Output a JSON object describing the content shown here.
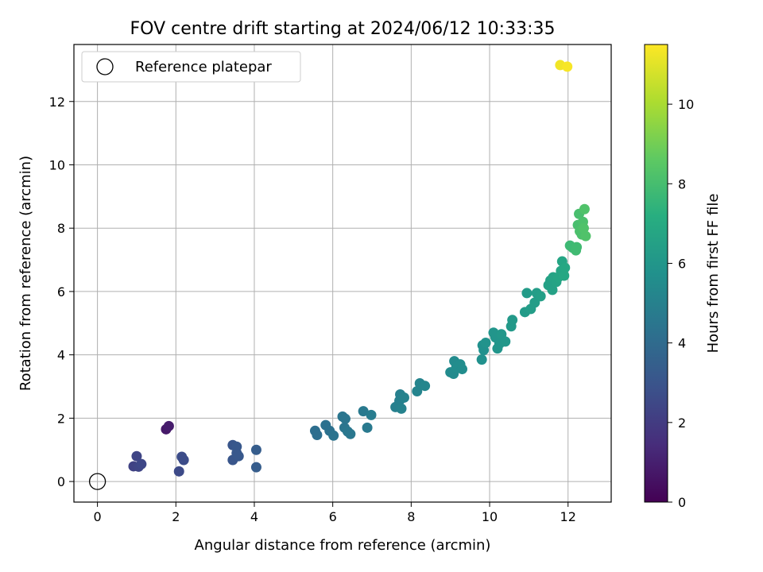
{
  "chart_data": {
    "type": "scatter",
    "title": "FOV centre drift starting at 2024/06/12 10:33:35",
    "xlabel": "Angular distance from reference (arcmin)",
    "ylabel": "Rotation from reference (arcmin)",
    "xlim": [
      -0.6,
      13.1
    ],
    "ylim": [
      -0.65,
      13.8
    ],
    "xticks": [
      0,
      2,
      4,
      6,
      8,
      10,
      12
    ],
    "yticks": [
      0,
      2,
      4,
      6,
      8,
      10,
      12
    ],
    "grid": true,
    "legend": {
      "placement": "top-left",
      "entries": [
        "Reference platepar"
      ]
    },
    "colorbar": {
      "label": "Hours from first FF file",
      "range": [
        0,
        11.5
      ],
      "ticks": [
        0,
        2,
        4,
        6,
        8,
        10
      ],
      "colormap": "viridis"
    },
    "reference_point": {
      "x": 0,
      "y": 0
    },
    "points": [
      {
        "x": 1.75,
        "y": 1.65,
        "h": 0.8
      },
      {
        "x": 1.82,
        "y": 1.75,
        "h": 0.9
      },
      {
        "x": 0.92,
        "y": 0.48,
        "h": 2.3
      },
      {
        "x": 1.0,
        "y": 0.8,
        "h": 2.4
      },
      {
        "x": 1.05,
        "y": 0.47,
        "h": 2.4
      },
      {
        "x": 1.12,
        "y": 0.55,
        "h": 2.5
      },
      {
        "x": 2.08,
        "y": 0.32,
        "h": 2.6
      },
      {
        "x": 2.15,
        "y": 0.78,
        "h": 2.7
      },
      {
        "x": 2.2,
        "y": 0.68,
        "h": 2.7
      },
      {
        "x": 3.45,
        "y": 0.68,
        "h": 3.1
      },
      {
        "x": 3.45,
        "y": 1.15,
        "h": 3.1
      },
      {
        "x": 3.55,
        "y": 1.1,
        "h": 3.2
      },
      {
        "x": 3.55,
        "y": 0.9,
        "h": 3.2
      },
      {
        "x": 3.6,
        "y": 0.8,
        "h": 3.2
      },
      {
        "x": 4.05,
        "y": 1.0,
        "h": 3.4
      },
      {
        "x": 4.05,
        "y": 0.45,
        "h": 3.4
      },
      {
        "x": 5.55,
        "y": 1.6,
        "h": 4.2
      },
      {
        "x": 5.6,
        "y": 1.47,
        "h": 4.2
      },
      {
        "x": 5.82,
        "y": 1.78,
        "h": 4.3
      },
      {
        "x": 5.92,
        "y": 1.6,
        "h": 4.3
      },
      {
        "x": 6.02,
        "y": 1.45,
        "h": 4.4
      },
      {
        "x": 6.25,
        "y": 2.05,
        "h": 4.5
      },
      {
        "x": 6.3,
        "y": 1.7,
        "h": 4.5
      },
      {
        "x": 6.32,
        "y": 1.98,
        "h": 4.5
      },
      {
        "x": 6.38,
        "y": 1.58,
        "h": 4.6
      },
      {
        "x": 6.45,
        "y": 1.5,
        "h": 4.6
      },
      {
        "x": 6.78,
        "y": 2.22,
        "h": 4.7
      },
      {
        "x": 6.88,
        "y": 1.7,
        "h": 4.7
      },
      {
        "x": 6.98,
        "y": 2.1,
        "h": 4.8
      },
      {
        "x": 7.6,
        "y": 2.35,
        "h": 5.0
      },
      {
        "x": 7.7,
        "y": 2.55,
        "h": 5.0
      },
      {
        "x": 7.72,
        "y": 2.75,
        "h": 5.0
      },
      {
        "x": 7.75,
        "y": 2.3,
        "h": 5.1
      },
      {
        "x": 7.82,
        "y": 2.65,
        "h": 5.1
      },
      {
        "x": 8.15,
        "y": 2.85,
        "h": 5.2
      },
      {
        "x": 8.22,
        "y": 3.1,
        "h": 5.2
      },
      {
        "x": 8.35,
        "y": 3.02,
        "h": 5.3
      },
      {
        "x": 9.0,
        "y": 3.45,
        "h": 5.5
      },
      {
        "x": 9.08,
        "y": 3.4,
        "h": 5.5
      },
      {
        "x": 9.1,
        "y": 3.8,
        "h": 5.5
      },
      {
        "x": 9.15,
        "y": 3.6,
        "h": 5.6
      },
      {
        "x": 9.25,
        "y": 3.7,
        "h": 5.6
      },
      {
        "x": 9.3,
        "y": 3.55,
        "h": 5.6
      },
      {
        "x": 9.8,
        "y": 3.85,
        "h": 5.8
      },
      {
        "x": 9.82,
        "y": 4.3,
        "h": 5.8
      },
      {
        "x": 9.85,
        "y": 4.15,
        "h": 5.8
      },
      {
        "x": 9.9,
        "y": 4.38,
        "h": 5.9
      },
      {
        "x": 10.1,
        "y": 4.7,
        "h": 6.0
      },
      {
        "x": 10.15,
        "y": 4.55,
        "h": 6.0
      },
      {
        "x": 10.2,
        "y": 4.2,
        "h": 6.0
      },
      {
        "x": 10.25,
        "y": 4.35,
        "h": 6.0
      },
      {
        "x": 10.3,
        "y": 4.65,
        "h": 6.1
      },
      {
        "x": 10.4,
        "y": 4.42,
        "h": 6.1
      },
      {
        "x": 10.55,
        "y": 4.9,
        "h": 6.2
      },
      {
        "x": 10.58,
        "y": 5.1,
        "h": 6.2
      },
      {
        "x": 10.9,
        "y": 5.35,
        "h": 6.3
      },
      {
        "x": 10.95,
        "y": 5.95,
        "h": 6.3
      },
      {
        "x": 11.05,
        "y": 5.45,
        "h": 6.4
      },
      {
        "x": 11.15,
        "y": 5.65,
        "h": 6.4
      },
      {
        "x": 11.2,
        "y": 5.95,
        "h": 6.4
      },
      {
        "x": 11.3,
        "y": 5.85,
        "h": 6.5
      },
      {
        "x": 11.5,
        "y": 6.2,
        "h": 6.6
      },
      {
        "x": 11.55,
        "y": 6.35,
        "h": 6.6
      },
      {
        "x": 11.6,
        "y": 6.05,
        "h": 6.6
      },
      {
        "x": 11.62,
        "y": 6.45,
        "h": 6.7
      },
      {
        "x": 11.7,
        "y": 6.3,
        "h": 6.7
      },
      {
        "x": 11.75,
        "y": 6.45,
        "h": 6.8
      },
      {
        "x": 11.82,
        "y": 6.65,
        "h": 6.8
      },
      {
        "x": 11.85,
        "y": 6.95,
        "h": 6.8
      },
      {
        "x": 11.9,
        "y": 6.5,
        "h": 6.9
      },
      {
        "x": 11.92,
        "y": 6.75,
        "h": 6.9
      },
      {
        "x": 12.05,
        "y": 7.45,
        "h": 7.8
      },
      {
        "x": 12.12,
        "y": 7.38,
        "h": 7.8
      },
      {
        "x": 12.2,
        "y": 7.3,
        "h": 7.9
      },
      {
        "x": 12.22,
        "y": 7.4,
        "h": 7.9
      },
      {
        "x": 12.25,
        "y": 8.1,
        "h": 8.1
      },
      {
        "x": 12.28,
        "y": 8.45,
        "h": 8.1
      },
      {
        "x": 12.3,
        "y": 7.9,
        "h": 8.2
      },
      {
        "x": 12.35,
        "y": 7.8,
        "h": 8.2
      },
      {
        "x": 12.38,
        "y": 8.2,
        "h": 8.2
      },
      {
        "x": 12.4,
        "y": 8.0,
        "h": 8.3
      },
      {
        "x": 12.42,
        "y": 8.6,
        "h": 8.3
      },
      {
        "x": 12.45,
        "y": 7.75,
        "h": 8.3
      },
      {
        "x": 11.8,
        "y": 13.15,
        "h": 11.3
      },
      {
        "x": 11.98,
        "y": 13.1,
        "h": 11.4
      }
    ]
  }
}
